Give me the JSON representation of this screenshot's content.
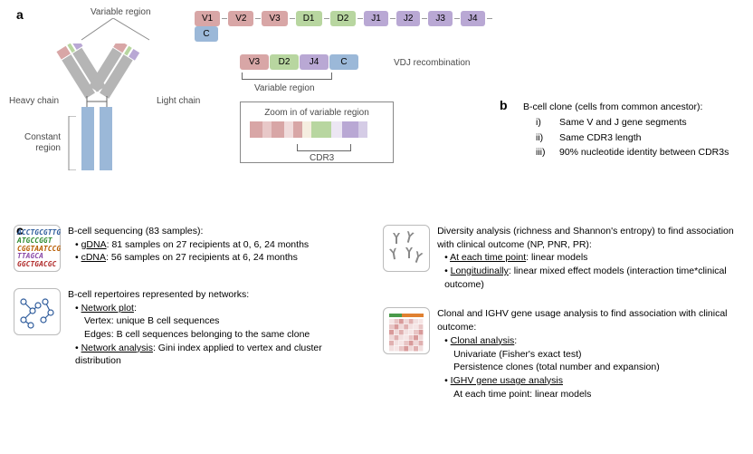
{
  "panels": {
    "a": "a",
    "b": "b",
    "c": "c"
  },
  "colors": {
    "v": "#d8a6a6",
    "d": "#b8d6a0",
    "j": "#b9a8d4",
    "c": "#9bb8d8",
    "gray": "#b5b5b5",
    "blue_dark": "#2f5c9c",
    "heat_red": "#e09090"
  },
  "gene_top": [
    {
      "label": "V1",
      "c": "#d8a6a6"
    },
    {
      "label": "V2",
      "c": "#d8a6a6"
    },
    {
      "label": "V3",
      "c": "#d8a6a6"
    },
    {
      "label": "D1",
      "c": "#b8d6a0"
    },
    {
      "label": "D2",
      "c": "#b8d6a0"
    },
    {
      "label": "J1",
      "c": "#b9a8d4"
    },
    {
      "label": "J2",
      "c": "#b9a8d4"
    },
    {
      "label": "J3",
      "c": "#b9a8d4"
    },
    {
      "label": "J4",
      "c": "#b9a8d4"
    },
    {
      "label": "C",
      "c": "#9bb8d8"
    }
  ],
  "gene_recomb": [
    {
      "label": "V3",
      "c": "#d8a6a6"
    },
    {
      "label": "D2",
      "c": "#b8d6a0"
    },
    {
      "label": "J4",
      "c": "#b9a8d4"
    },
    {
      "label": "C",
      "c": "#9bb8d8"
    }
  ],
  "labels": {
    "variable_region": "Variable region",
    "vdj": "VDJ recombination",
    "heavy": "Heavy chain",
    "light": "Light chain",
    "constant": "Constant region",
    "zoom_title": "Zoom in of variable region",
    "cdr3": "CDR3"
  },
  "zoom_stripes": [
    {
      "c": "#d8a6a6",
      "w": 14
    },
    {
      "c": "#e8c8c8",
      "w": 10
    },
    {
      "c": "#d8a6a6",
      "w": 14
    },
    {
      "c": "#f0dcdc",
      "w": 10
    },
    {
      "c": "#d8a6a6",
      "w": 10
    },
    {
      "c": "#f5eee0",
      "w": 10
    },
    {
      "c": "#b8d6a0",
      "w": 22
    },
    {
      "c": "#ece6f3",
      "w": 12
    },
    {
      "c": "#b9a8d4",
      "w": 18
    },
    {
      "c": "#d5cce6",
      "w": 10
    }
  ],
  "b": {
    "title": "B-cell clone (cells from common ancestor):",
    "items": [
      {
        "n": "i)",
        "t": "Same V and J gene segments"
      },
      {
        "n": "ii)",
        "t": "Same CDR3 length"
      },
      {
        "n": "iii)",
        "t": "90% nucleotide identity between CDR3s"
      }
    ]
  },
  "c": {
    "seq": {
      "lines": [
        "ACCTGCGTTG",
        "ATGCCGGT",
        "CGGTAATCCG",
        "TTAGCA",
        "GGCTGACGC"
      ],
      "colors": [
        "#2f5c9c",
        "#2e8b2e",
        "#b85c00",
        "#8a4aa8",
        "#b02a2a"
      ]
    },
    "block1": {
      "hdr": "B-cell sequencing (83 samples):",
      "li1a": "gDNA",
      "li1b": ": 81 samples on 27 recipients at 0, 6, 24 months",
      "li2a": "cDNA",
      "li2b": ": 56 samples on 27 recipients at 6, 24 months"
    },
    "block2": {
      "hdr": "Diversity analysis (richness and Shannon's entropy) to find association with clinical outcome (NP, PNR, PR):",
      "li1a": "At each time point",
      "li1b": ": linear models",
      "li2a": "Longitudinally",
      "li2b": ": linear mixed effect models (interaction time*clinical outcome)"
    },
    "block3": {
      "hdr": "B-cell repertoires represented by networks:",
      "li1a": "Network plot",
      "li1b": ":",
      "sub1": "Vertex: unique B cell sequences",
      "sub2": "Edges: B cell sequences belonging to the same clone",
      "li2a": "Network analysis",
      "li2b": ": Gini index applied to vertex and cluster distribution"
    },
    "block4": {
      "hdr": "Clonal and IGHV gene usage analysis to find association with clinical outcome:",
      "li1a": "Clonal analysis",
      "li1b": ":",
      "sub1": "Univariate (Fisher's exact test)",
      "sub2": "Persistence clones (total number and expansion)",
      "li2a": "IGHV gene usage analysis",
      "sub3": "At each time point: linear models"
    }
  }
}
